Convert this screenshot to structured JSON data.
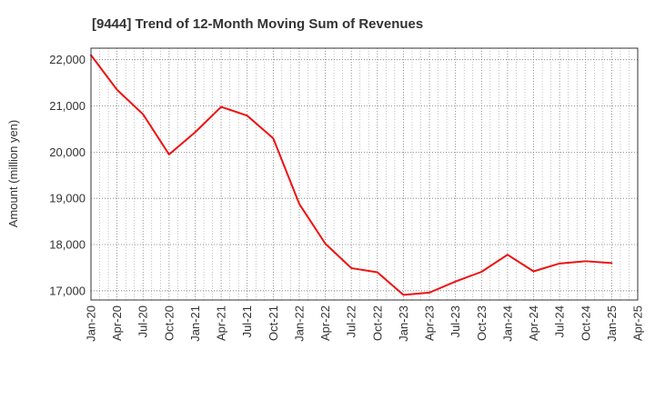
{
  "chart_data": {
    "type": "line",
    "title": "[9444]  Trend of 12-Month Moving Sum of Revenues",
    "xlabel": "",
    "ylabel": "Amount (million yen)",
    "ylim": [
      16800,
      22250
    ],
    "yticks": [
      17000,
      18000,
      19000,
      20000,
      21000,
      22000
    ],
    "ytick_labels": [
      "17,000",
      "18,000",
      "19,000",
      "20,000",
      "21,000",
      "22,000"
    ],
    "x_tick_labels": [
      "Jan-20",
      "Apr-20",
      "Jul-20",
      "Oct-20",
      "Jan-21",
      "Apr-21",
      "Jul-21",
      "Oct-21",
      "Jan-22",
      "Apr-22",
      "Jul-22",
      "Oct-22",
      "Jan-23",
      "Apr-23",
      "Jul-23",
      "Oct-23",
      "Jan-24",
      "Apr-24",
      "Jul-24",
      "Oct-24",
      "Jan-25",
      "Apr-25"
    ],
    "grid": true,
    "line_color": "#ee1111",
    "series": [
      {
        "name": "",
        "x": [
          "Jan-20",
          "Apr-20",
          "Jul-20",
          "Oct-20",
          "Jan-21",
          "Apr-21",
          "Jul-21",
          "Oct-21",
          "Jan-22",
          "Apr-22",
          "Jul-22",
          "Oct-22",
          "Jan-23",
          "Apr-23",
          "Jul-23",
          "Oct-23",
          "Jan-24",
          "Apr-24",
          "Jul-24",
          "Oct-24",
          "Jan-25"
        ],
        "values": [
          22100,
          21350,
          20820,
          19950,
          20430,
          20980,
          20790,
          20300,
          18880,
          18020,
          17490,
          17400,
          16910,
          16960,
          17200,
          17410,
          17780,
          17420,
          17590,
          17640,
          17600
        ]
      }
    ]
  }
}
